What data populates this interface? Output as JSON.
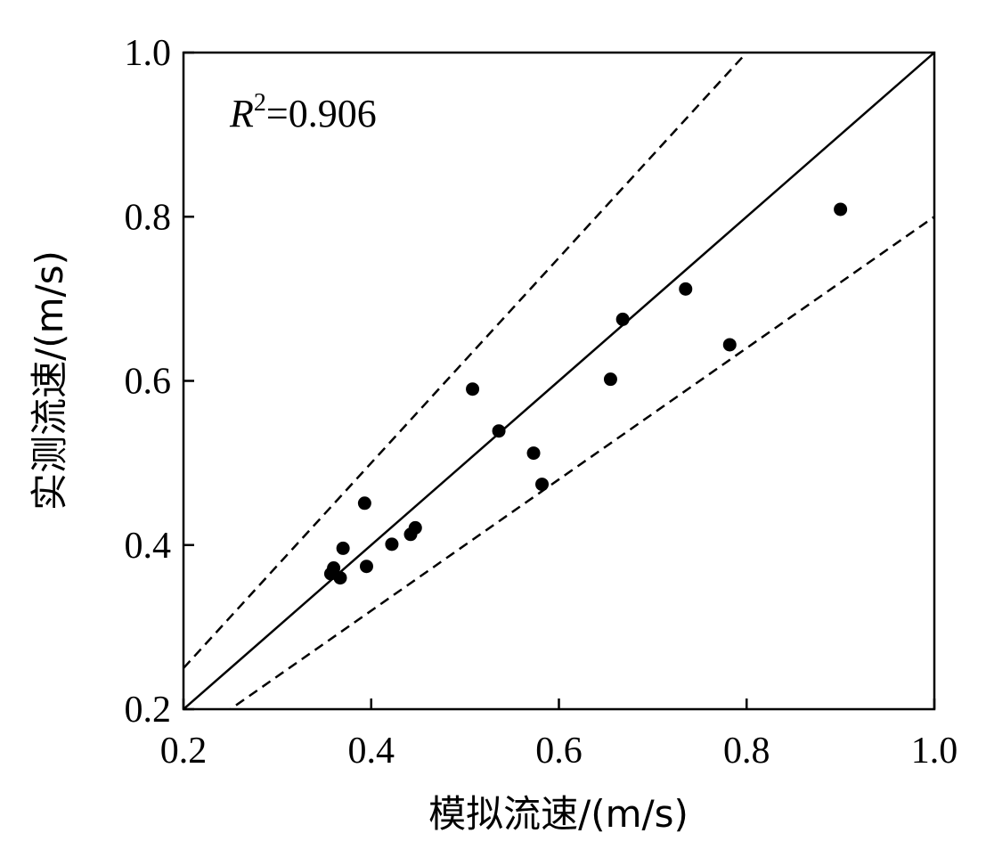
{
  "chart_data": {
    "type": "scatter",
    "title": "",
    "xlabel": "模拟流速/(m/s)",
    "ylabel": "实测流速/(m/s)",
    "xlim": [
      0.2,
      1.0
    ],
    "ylim": [
      0.2,
      1.0
    ],
    "x_ticks": [
      "0.2",
      "0.4",
      "0.6",
      "0.8",
      "1.0"
    ],
    "y_ticks": [
      "0.2",
      "0.4",
      "0.6",
      "0.8",
      "1.0"
    ],
    "grid": false,
    "annotation": {
      "var": "R",
      "sup": "2",
      "rest": "=0.906"
    },
    "reference_lines": [
      {
        "style": "solid",
        "slope": 1.0,
        "intercept": 0.0
      },
      {
        "style": "dashed",
        "slope": 1.25,
        "intercept": 0.0
      },
      {
        "style": "dashed",
        "slope": 0.8,
        "intercept": 0.0
      }
    ],
    "series": [
      {
        "x": [
          0.357,
          0.36,
          0.367,
          0.37,
          0.395,
          0.393,
          0.422,
          0.442,
          0.447,
          0.508,
          0.536,
          0.573,
          0.582,
          0.655,
          0.668,
          0.735,
          0.782,
          0.9
        ],
        "y": [
          0.365,
          0.372,
          0.36,
          0.396,
          0.374,
          0.451,
          0.401,
          0.413,
          0.421,
          0.59,
          0.539,
          0.512,
          0.474,
          0.602,
          0.675,
          0.712,
          0.644,
          0.809
        ]
      }
    ]
  }
}
